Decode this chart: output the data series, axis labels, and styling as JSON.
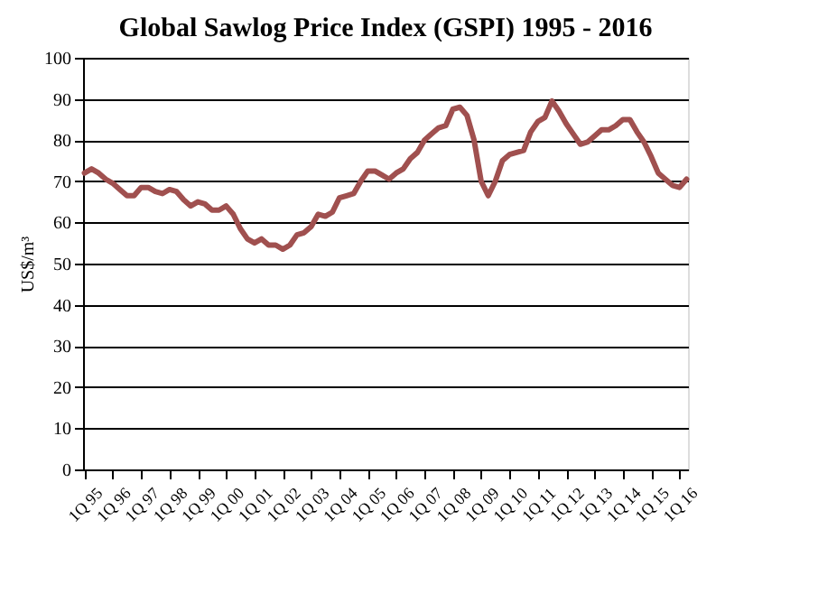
{
  "chart_data": {
    "type": "line",
    "title": "Global Sawlog Price Index (GSPI) 1995 - 2016",
    "ylabel": "US$/m³",
    "categories": [
      "1Q 95",
      null,
      null,
      null,
      "1Q 96",
      null,
      null,
      null,
      "1Q 97",
      null,
      null,
      null,
      "1Q 98",
      null,
      null,
      null,
      "1Q 99",
      null,
      null,
      null,
      "1Q 00",
      null,
      null,
      null,
      "1Q 01",
      null,
      null,
      null,
      "1Q 02",
      null,
      null,
      null,
      "1Q 03",
      null,
      null,
      null,
      "1Q 04",
      null,
      null,
      null,
      "1Q 05",
      null,
      null,
      null,
      "1Q 06",
      null,
      null,
      null,
      "1Q 07",
      null,
      null,
      null,
      "1Q 08",
      null,
      null,
      null,
      "1Q 09",
      null,
      null,
      null,
      "1Q 10",
      null,
      null,
      null,
      "1Q 11",
      null,
      null,
      null,
      "1Q 12",
      null,
      null,
      null,
      "1Q 13",
      null,
      null,
      null,
      "1Q 14",
      null,
      null,
      null,
      "1Q 15",
      null,
      null,
      null,
      "1Q 16",
      null
    ],
    "series": [
      {
        "color": "#a0504f",
        "values": [
          72,
          73,
          72,
          70.5,
          69.5,
          68,
          66.5,
          66.5,
          68.5,
          68.5,
          67.5,
          67,
          68,
          67.5,
          65.5,
          64,
          65,
          64.5,
          63,
          63,
          64,
          62,
          58.5,
          56,
          55,
          56,
          54.5,
          54.5,
          53.5,
          54.5,
          57,
          57.5,
          59,
          62,
          61.5,
          62.5,
          66,
          66.5,
          67,
          70,
          72.5,
          72.5,
          71.5,
          70.5,
          72,
          73,
          75.5,
          77,
          80,
          81.5,
          83,
          83.5,
          87.5,
          88,
          86,
          80,
          70,
          66.5,
          70,
          75,
          76.5,
          77,
          77.5,
          82,
          84.5,
          85.5,
          89.5,
          87,
          84,
          81.5,
          79,
          79.5,
          81,
          82.5,
          82.5,
          83.5,
          85,
          85,
          82,
          79.5,
          76,
          72,
          70.5,
          69,
          68.5,
          70.5
        ]
      }
    ],
    "ylim": [
      0,
      100
    ],
    "yticks": [
      0,
      10,
      20,
      30,
      40,
      50,
      60,
      70,
      80,
      90,
      100
    ],
    "grid": "y",
    "marker": "none",
    "line_style": "solid"
  }
}
